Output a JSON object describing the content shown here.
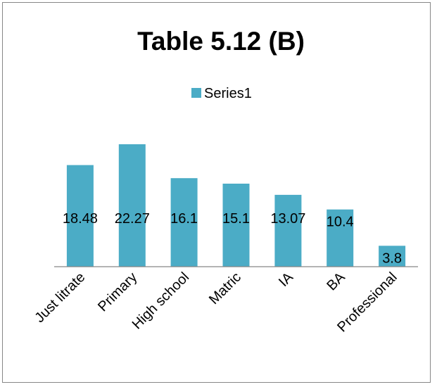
{
  "chart_data": {
    "type": "bar",
    "title": "Table 5.12 (B)",
    "categories": [
      "Just litrate",
      "Primary",
      "High school",
      "Matric",
      "IA",
      "BA",
      "Professional"
    ],
    "series": [
      {
        "name": "Series1",
        "values": [
          18.48,
          22.27,
          16.1,
          15.1,
          13.07,
          10.4,
          3.8
        ],
        "color": "#4bacc6"
      }
    ],
    "data_labels": [
      "18.48",
      "22.27",
      "16.1",
      "15.1",
      "13.07",
      "10.4",
      "3.8"
    ],
    "ylim": [
      0,
      24
    ],
    "y_axis_visible": false,
    "grid": false,
    "legend_position": "top",
    "colors": {
      "bar": "#4bacc6",
      "axis": "#868686",
      "frame": "#878787"
    }
  }
}
